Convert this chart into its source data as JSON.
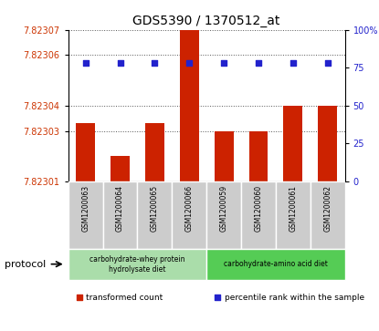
{
  "title": "GDS5390 / 1370512_at",
  "samples": [
    "GSM1200063",
    "GSM1200064",
    "GSM1200065",
    "GSM1200066",
    "GSM1200059",
    "GSM1200060",
    "GSM1200061",
    "GSM1200062"
  ],
  "bar_values": [
    7.823033,
    7.82302,
    7.823033,
    7.82307,
    7.82303,
    7.82303,
    7.82304,
    7.82304
  ],
  "dot_values": [
    78,
    78,
    78,
    78,
    78,
    78,
    78,
    78
  ],
  "ylim_left": [
    7.82301,
    7.82307
  ],
  "ylim_right": [
    0,
    100
  ],
  "yticks_left": [
    7.82301,
    7.82303,
    7.82304,
    7.82306,
    7.82307
  ],
  "yticks_right": [
    0,
    25,
    50,
    75,
    100
  ],
  "ytick_labels_left": [
    "7.82301",
    "7.82303",
    "7.82304",
    "7.82306",
    "7.82307"
  ],
  "ytick_labels_right": [
    "0",
    "25",
    "50",
    "75",
    "100%"
  ],
  "bar_color": "#cc2200",
  "dot_color": "#2222cc",
  "bar_base": 7.82301,
  "protocol_groups": [
    {
      "label": "carbohydrate-whey protein\nhydrolysate diet",
      "n_samples": 4,
      "color": "#aaddaa"
    },
    {
      "label": "carbohydrate-amino acid diet",
      "n_samples": 4,
      "color": "#55cc55"
    }
  ],
  "protocol_label": "protocol",
  "legend_items": [
    {
      "color": "#cc2200",
      "label": "transformed count"
    },
    {
      "color": "#2222cc",
      "label": "percentile rank within the sample"
    }
  ],
  "grid_linestyle": "dotted",
  "grid_color": "#555555",
  "tick_label_color_left": "#cc3300",
  "tick_label_color_right": "#2222cc",
  "bg_xtick": "#cccccc",
  "bg_white": "#ffffff"
}
